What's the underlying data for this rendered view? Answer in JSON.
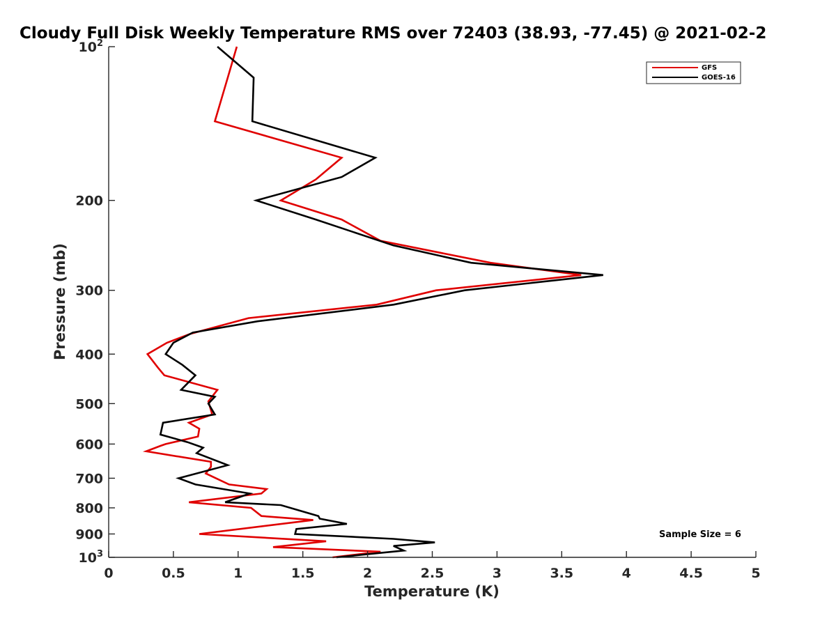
{
  "chart_data": {
    "type": "line",
    "title": "Cloudy Full Disk Weekly Temperature RMS over 72403 (38.93, -77.45) @ 2021-02-2",
    "xlabel": "Temperature (K)",
    "ylabel": "Pressure (mb)",
    "xlim": [
      0,
      5
    ],
    "ylim": [
      100,
      1000
    ],
    "y_scale": "log",
    "y_reversed": true,
    "x_ticks": [
      "0",
      "0.5",
      "1",
      "1.5",
      "2",
      "2.5",
      "3",
      "3.5",
      "4",
      "4.5",
      "5"
    ],
    "y_ticks": [
      {
        "value": 100,
        "label": "10",
        "sup": "2"
      },
      {
        "value": 200,
        "label": "200",
        "sup": ""
      },
      {
        "value": 300,
        "label": "300",
        "sup": ""
      },
      {
        "value": 400,
        "label": "400",
        "sup": ""
      },
      {
        "value": 500,
        "label": "500",
        "sup": ""
      },
      {
        "value": 600,
        "label": "600",
        "sup": ""
      },
      {
        "value": 700,
        "label": "700",
        "sup": ""
      },
      {
        "value": 800,
        "label": "800",
        "sup": ""
      },
      {
        "value": 900,
        "label": "900",
        "sup": ""
      },
      {
        "value": 1000,
        "label": "10",
        "sup": "3"
      }
    ],
    "grid": false,
    "legend_position": "top-right",
    "series": [
      {
        "name": "GFS",
        "color": "#e00000",
        "points": [
          [
            0.99,
            100
          ],
          [
            0.92,
            115
          ],
          [
            0.82,
            140
          ],
          [
            1.8,
            165
          ],
          [
            1.6,
            182
          ],
          [
            1.33,
            200
          ],
          [
            1.8,
            218
          ],
          [
            2.1,
            240
          ],
          [
            2.95,
            265
          ],
          [
            3.65,
            280
          ],
          [
            2.53,
            300
          ],
          [
            2.07,
            320
          ],
          [
            1.08,
            340
          ],
          [
            0.63,
            365
          ],
          [
            0.45,
            380
          ],
          [
            0.3,
            400
          ],
          [
            0.38,
            425
          ],
          [
            0.43,
            440
          ],
          [
            0.84,
            470
          ],
          [
            0.77,
            495
          ],
          [
            0.8,
            525
          ],
          [
            0.62,
            545
          ],
          [
            0.7,
            560
          ],
          [
            0.69,
            580
          ],
          [
            0.44,
            600
          ],
          [
            0.4,
            605
          ],
          [
            0.29,
            620
          ],
          [
            0.79,
            650
          ],
          [
            0.79,
            665
          ],
          [
            0.75,
            685
          ],
          [
            0.93,
            720
          ],
          [
            1.22,
            735
          ],
          [
            1.18,
            750
          ],
          [
            0.62,
            780
          ],
          [
            1.1,
            800
          ],
          [
            1.18,
            830
          ],
          [
            1.58,
            845
          ],
          [
            0.7,
            900
          ],
          [
            1.68,
            930
          ],
          [
            1.27,
            955
          ],
          [
            2.1,
            975
          ],
          [
            1.73,
            1000
          ]
        ]
      },
      {
        "name": "GOES-16",
        "color": "#000000",
        "points": [
          [
            0.84,
            100
          ],
          [
            1.12,
            115
          ],
          [
            1.11,
            140
          ],
          [
            2.06,
            165
          ],
          [
            1.8,
            180
          ],
          [
            1.14,
            200
          ],
          [
            1.6,
            218
          ],
          [
            2.2,
            245
          ],
          [
            2.8,
            265
          ],
          [
            3.82,
            280
          ],
          [
            2.75,
            300
          ],
          [
            2.2,
            320
          ],
          [
            1.15,
            345
          ],
          [
            0.65,
            363
          ],
          [
            0.5,
            380
          ],
          [
            0.44,
            400
          ],
          [
            0.57,
            420
          ],
          [
            0.67,
            440
          ],
          [
            0.56,
            470
          ],
          [
            0.82,
            485
          ],
          [
            0.77,
            500
          ],
          [
            0.82,
            525
          ],
          [
            0.42,
            545
          ],
          [
            0.4,
            575
          ],
          [
            0.61,
            595
          ],
          [
            0.73,
            610
          ],
          [
            0.68,
            625
          ],
          [
            0.92,
            660
          ],
          [
            0.54,
            700
          ],
          [
            0.67,
            720
          ],
          [
            1.09,
            750
          ],
          [
            0.9,
            780
          ],
          [
            1.33,
            790
          ],
          [
            1.62,
            830
          ],
          [
            1.63,
            840
          ],
          [
            1.84,
            860
          ],
          [
            1.45,
            880
          ],
          [
            1.44,
            900
          ],
          [
            2.2,
            920
          ],
          [
            2.52,
            935
          ],
          [
            2.2,
            950
          ],
          [
            2.28,
            970
          ],
          [
            1.76,
            1000
          ]
        ]
      }
    ],
    "annotations": [
      {
        "text": "Sample Size = 6"
      }
    ]
  }
}
